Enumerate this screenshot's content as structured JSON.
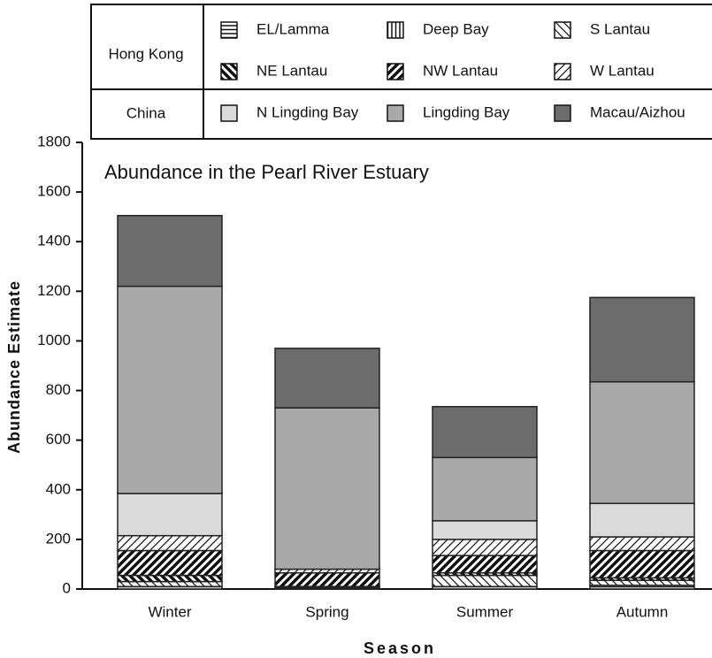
{
  "chart_data": {
    "type": "stacked-bar",
    "title": "Abundance in the Pearl River Estuary",
    "x_label": "Season",
    "y_label": "Abundance  Estimate",
    "categories": [
      "Winter",
      "Spring",
      "Summer",
      "Autumn"
    ],
    "ylim": [
      0,
      1800
    ],
    "yticks": [
      0,
      200,
      400,
      600,
      800,
      1000,
      1200,
      1400,
      1600,
      1800
    ],
    "legend_groups": [
      "Hong Kong",
      "China"
    ],
    "series": [
      {
        "name": "EL/Lamma",
        "group": "Hong Kong",
        "pattern": "hlines",
        "color": "#ffffff",
        "values": [
          10,
          5,
          10,
          15
        ]
      },
      {
        "name": "Deep Bay",
        "group": "Hong Kong",
        "pattern": "vlines",
        "color": "#ffffff",
        "values": [
          0,
          0,
          0,
          0
        ]
      },
      {
        "name": "S Lantau",
        "group": "Hong Kong",
        "pattern": "thin-back",
        "color": "#ffffff",
        "values": [
          20,
          5,
          45,
          20
        ]
      },
      {
        "name": "NE Lantau",
        "group": "Hong Kong",
        "pattern": "thick-back",
        "color": "#ffffff",
        "values": [
          25,
          0,
          10,
          10
        ]
      },
      {
        "name": "NW Lantau",
        "group": "Hong Kong",
        "pattern": "thick-fwd",
        "color": "#ffffff",
        "values": [
          100,
          55,
          70,
          110
        ]
      },
      {
        "name": "W Lantau",
        "group": "Hong Kong",
        "pattern": "thin-fwd",
        "color": "#ffffff",
        "values": [
          60,
          15,
          65,
          55
        ]
      },
      {
        "name": "N Lingding Bay",
        "group": "China",
        "pattern": "solid",
        "color": "#dadada",
        "values": [
          170,
          0,
          75,
          135
        ]
      },
      {
        "name": "Lingding Bay",
        "group": "China",
        "pattern": "solid",
        "color": "#a9a9a9",
        "values": [
          835,
          650,
          255,
          490
        ]
      },
      {
        "name": "Macau/Aizhou",
        "group": "China",
        "pattern": "solid",
        "color": "#6c6c6c",
        "values": [
          285,
          240,
          205,
          340
        ]
      }
    ]
  }
}
